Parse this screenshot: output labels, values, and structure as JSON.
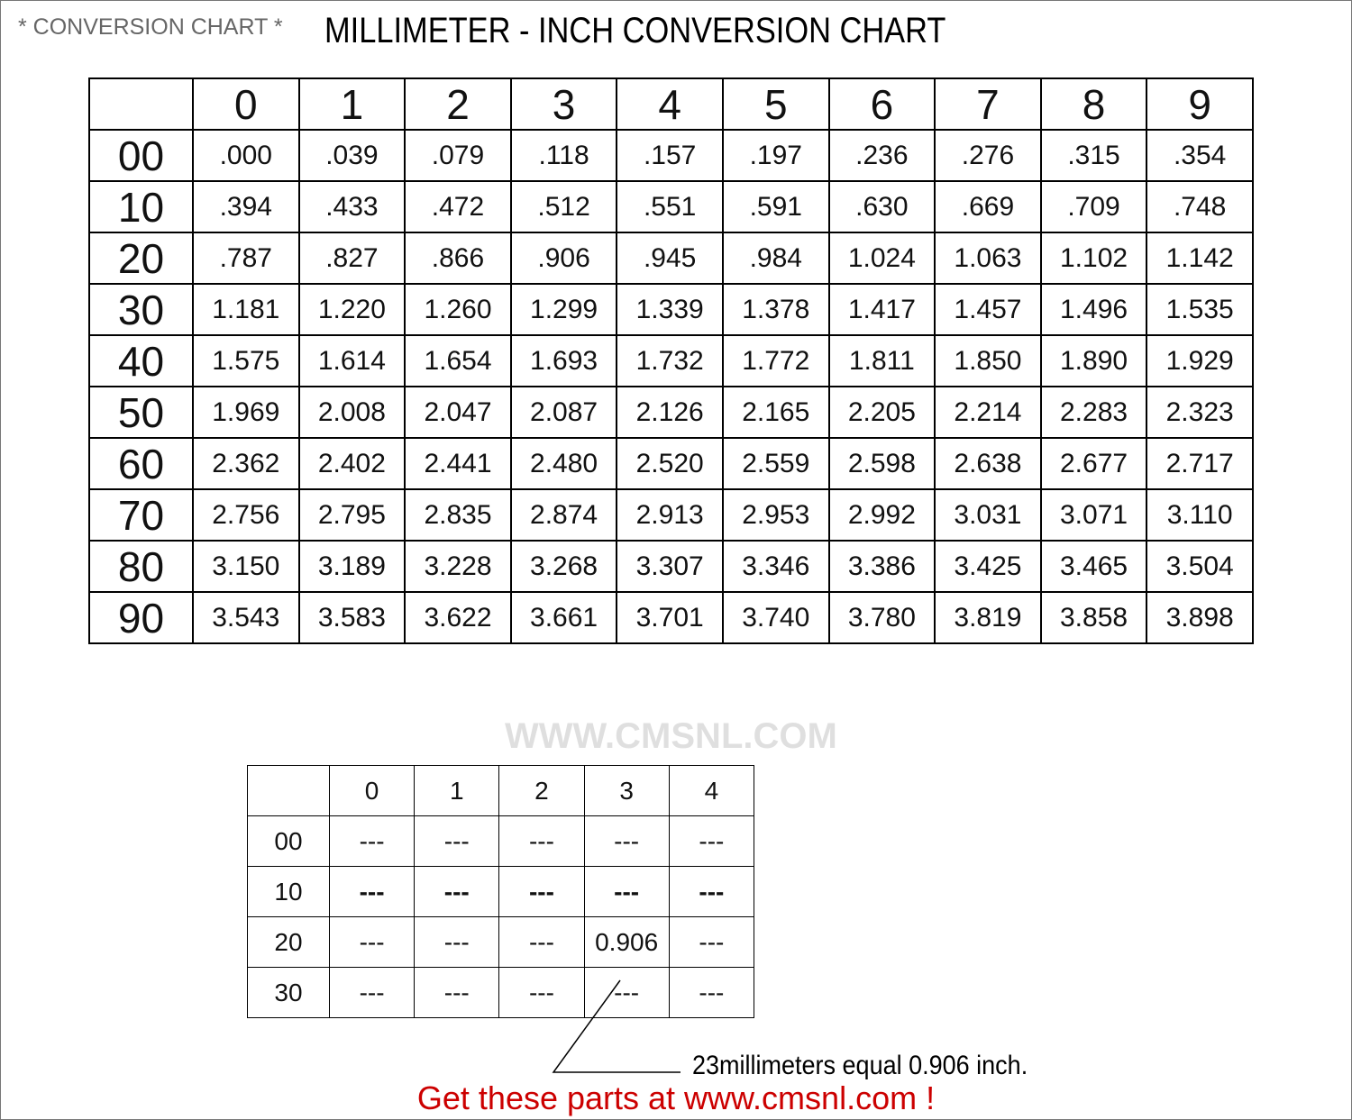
{
  "header": {
    "label": "* CONVERSION CHART *",
    "title": "MILLIMETER - INCH CONVERSION CHART"
  },
  "main_table": {
    "columns": [
      "0",
      "1",
      "2",
      "3",
      "4",
      "5",
      "6",
      "7",
      "8",
      "9"
    ],
    "rows": [
      {
        "label": "00",
        "cells": [
          ".000",
          ".039",
          ".079",
          ".118",
          ".157",
          ".197",
          ".236",
          ".276",
          ".315",
          ".354"
        ]
      },
      {
        "label": "10",
        "cells": [
          ".394",
          ".433",
          ".472",
          ".512",
          ".551",
          ".591",
          ".630",
          ".669",
          ".709",
          ".748"
        ]
      },
      {
        "label": "20",
        "cells": [
          ".787",
          ".827",
          ".866",
          ".906",
          ".945",
          ".984",
          "1.024",
          "1.063",
          "1.102",
          "1.142"
        ]
      },
      {
        "label": "30",
        "cells": [
          "1.181",
          "1.220",
          "1.260",
          "1.299",
          "1.339",
          "1.378",
          "1.417",
          "1.457",
          "1.496",
          "1.535"
        ]
      },
      {
        "label": "40",
        "cells": [
          "1.575",
          "1.614",
          "1.654",
          "1.693",
          "1.732",
          "1.772",
          "1.811",
          "1.850",
          "1.890",
          "1.929"
        ]
      },
      {
        "label": "50",
        "cells": [
          "1.969",
          "2.008",
          "2.047",
          "2.087",
          "2.126",
          "2.165",
          "2.205",
          "2.214",
          "2.283",
          "2.323"
        ]
      },
      {
        "label": "60",
        "cells": [
          "2.362",
          "2.402",
          "2.441",
          "2.480",
          "2.520",
          "2.559",
          "2.598",
          "2.638",
          "2.677",
          "2.717"
        ]
      },
      {
        "label": "70",
        "cells": [
          "2.756",
          "2.795",
          "2.835",
          "2.874",
          "2.913",
          "2.953",
          "2.992",
          "3.031",
          "3.071",
          "3.110"
        ]
      },
      {
        "label": "80",
        "cells": [
          "3.150",
          "3.189",
          "3.228",
          "3.268",
          "3.307",
          "3.346",
          "3.386",
          "3.425",
          "3.465",
          "3.504"
        ]
      },
      {
        "label": "90",
        "cells": [
          "3.543",
          "3.583",
          "3.622",
          "3.661",
          "3.701",
          "3.740",
          "3.780",
          "3.819",
          "3.858",
          "3.898"
        ]
      }
    ]
  },
  "example_table": {
    "columns": [
      "0",
      "1",
      "2",
      "3",
      "4"
    ],
    "rows": [
      {
        "label": "00",
        "cells": [
          "---",
          "---",
          "---",
          "---",
          "---"
        ]
      },
      {
        "label": "10",
        "cells": [
          "---",
          "---",
          "---",
          "---",
          "---"
        ]
      },
      {
        "label": "20",
        "cells": [
          "---",
          "---",
          "---",
          "0.906",
          "---"
        ]
      },
      {
        "label": "30",
        "cells": [
          "---",
          "---",
          "---",
          "---",
          "---"
        ]
      }
    ]
  },
  "example_note": "23millimeters equal 0.906 inch.",
  "watermark": "WWW.CMSNL.COM",
  "footer": "Get these parts at www.cmsnl.com !"
}
